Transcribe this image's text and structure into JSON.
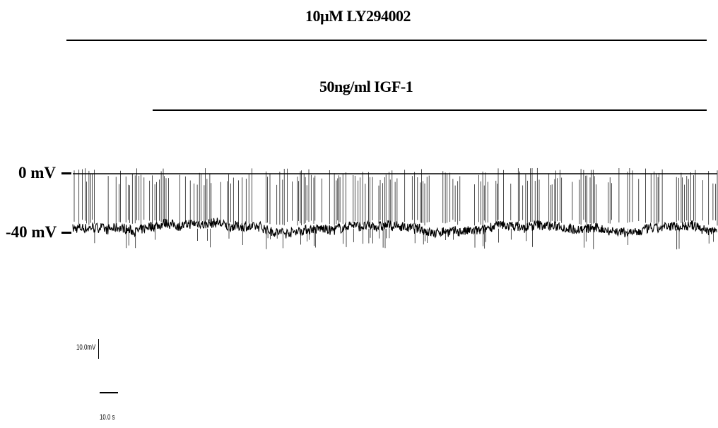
{
  "treatments": {
    "drug_label": "10µM LY294002",
    "igf_label": "50ng/ml IGF-1"
  },
  "voltage_markers": {
    "zero_label": "0 mV",
    "minus40_label": "-40 mV"
  },
  "scale_bar": {
    "voltage_label": "10.0mV",
    "time_label": "10.0 s"
  },
  "chart_data": {
    "type": "line",
    "title": "",
    "xlabel": "",
    "ylabel": "",
    "units": {
      "y": "mV",
      "x": "s"
    },
    "y_reference_lines": [
      0,
      -40
    ],
    "series": [
      {
        "description_free": true,
        "baseline_mv": -37,
        "spike_peak_mv": 0,
        "noise_mv": 3
      }
    ],
    "trace_color": "#000000",
    "grid": false
  }
}
